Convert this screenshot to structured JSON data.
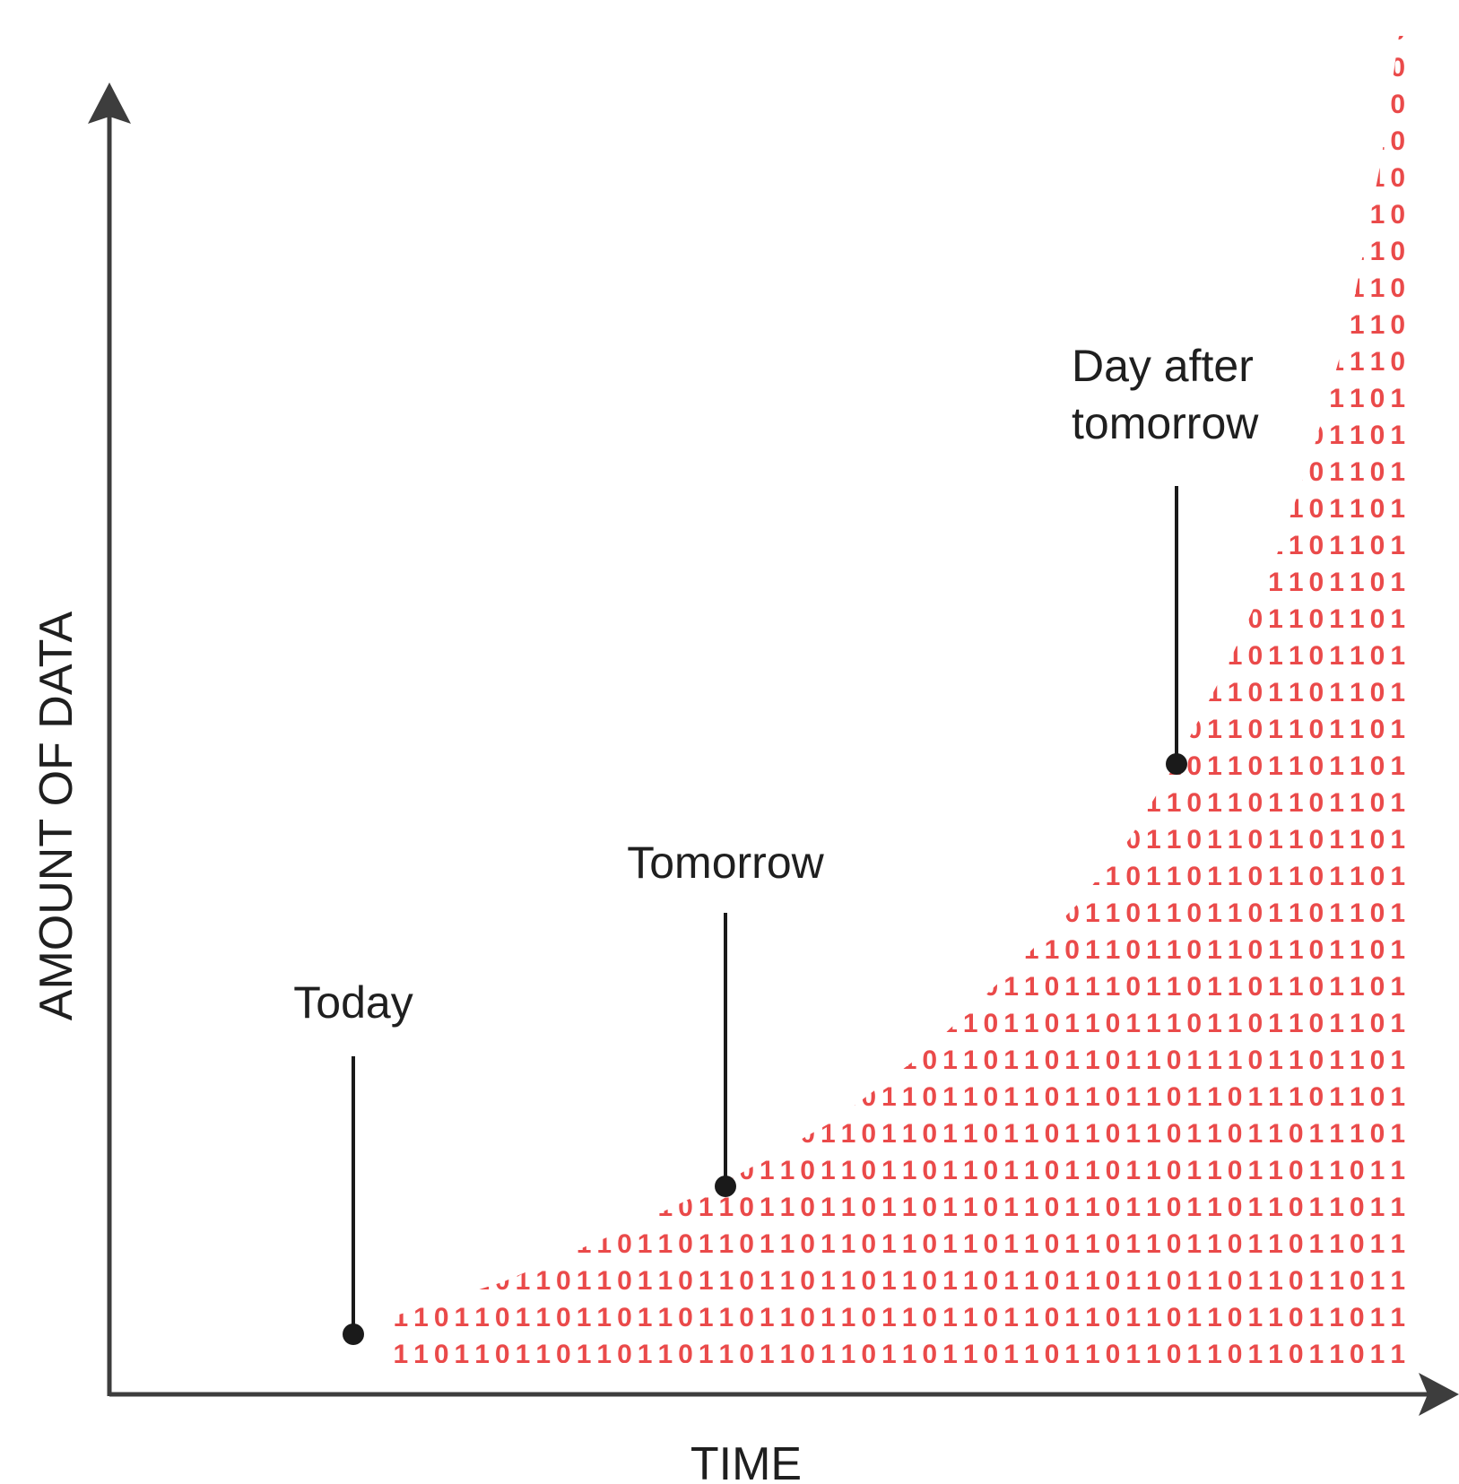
{
  "figure": {
    "x_axis_label": "TIME",
    "y_axis_label": "AMOUNT OF DATA",
    "binary_pattern": "1101101101101101101101101101101101101101101101101101101101101101",
    "colors": {
      "binary": "#ea4a4a",
      "axis": "#3d3d3d",
      "text": "#1f1f1f",
      "marker": "#1a1a1a"
    },
    "markers": [
      {
        "label": "Today"
      },
      {
        "label": "Tomorrow"
      },
      {
        "label": "Day after tomorrow"
      }
    ]
  }
}
